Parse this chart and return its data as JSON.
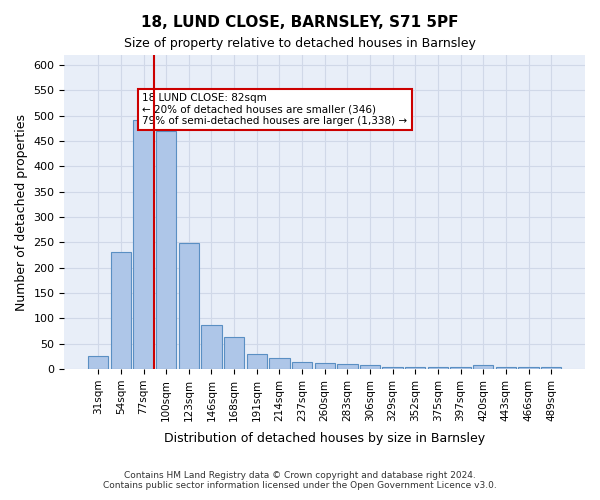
{
  "title1": "18, LUND CLOSE, BARNSLEY, S71 5PF",
  "title2": "Size of property relative to detached houses in Barnsley",
  "xlabel": "Distribution of detached houses by size in Barnsley",
  "ylabel": "Number of detached properties",
  "categories": [
    "31sqm",
    "54sqm",
    "77sqm",
    "100sqm",
    "123sqm",
    "146sqm",
    "168sqm",
    "191sqm",
    "214sqm",
    "237sqm",
    "260sqm",
    "283sqm",
    "306sqm",
    "329sqm",
    "352sqm",
    "375sqm",
    "397sqm",
    "420sqm",
    "443sqm",
    "466sqm",
    "489sqm"
  ],
  "values": [
    25,
    232,
    491,
    470,
    249,
    87,
    63,
    30,
    22,
    13,
    11,
    10,
    8,
    5,
    4,
    4,
    4,
    7,
    4,
    4,
    5
  ],
  "bar_color": "#aec6e8",
  "bar_edge_color": "#5a8fc3",
  "red_line_x": 2,
  "annotation_text": "18 LUND CLOSE: 82sqm\n← 20% of detached houses are smaller (346)\n79% of semi-detached houses are larger (1,338) →",
  "annotation_box_color": "#ffffff",
  "annotation_box_edge_color": "#cc0000",
  "ylim": [
    0,
    620
  ],
  "yticks": [
    0,
    50,
    100,
    150,
    200,
    250,
    300,
    350,
    400,
    450,
    500,
    550,
    600
  ],
  "footer1": "Contains HM Land Registry data © Crown copyright and database right 2024.",
  "footer2": "Contains public sector information licensed under the Open Government Licence v3.0.",
  "grid_color": "#d0d8e8",
  "background_color": "#e8eef8"
}
